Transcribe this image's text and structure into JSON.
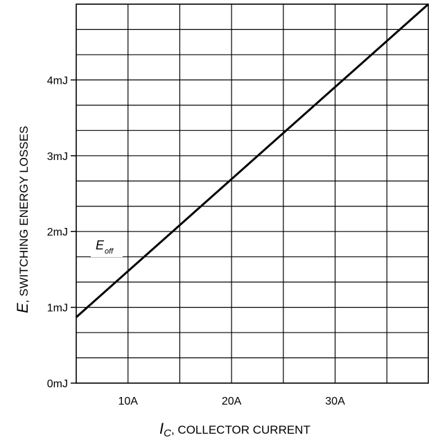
{
  "chart_data": {
    "type": "line",
    "x_var": "I",
    "x_var_sub": "C",
    "xlabel": ", COLLECTOR CURRENT",
    "y_var": "E",
    "ylabel": ", SWITCHING ENERGY LOSSES",
    "xlim": [
      5,
      39
    ],
    "ylim": [
      0,
      5
    ],
    "x_ticks": [
      {
        "value": 10,
        "label": "10A"
      },
      {
        "value": 20,
        "label": "20A"
      },
      {
        "value": 30,
        "label": "30A"
      }
    ],
    "y_ticks": [
      {
        "value": 0,
        "label": "0mJ"
      },
      {
        "value": 1,
        "label": "1mJ"
      },
      {
        "value": 2,
        "label": "2mJ"
      },
      {
        "value": 3,
        "label": "3mJ"
      },
      {
        "value": 4,
        "label": "4mJ"
      }
    ],
    "grid": true,
    "x_grid_step": 5,
    "y_grid_step": 0.333,
    "series": [
      {
        "name_main": "E",
        "name_sub": "off",
        "color": "#000000",
        "x": [
          5,
          39
        ],
        "y": [
          0.87,
          5.0
        ]
      }
    ]
  }
}
